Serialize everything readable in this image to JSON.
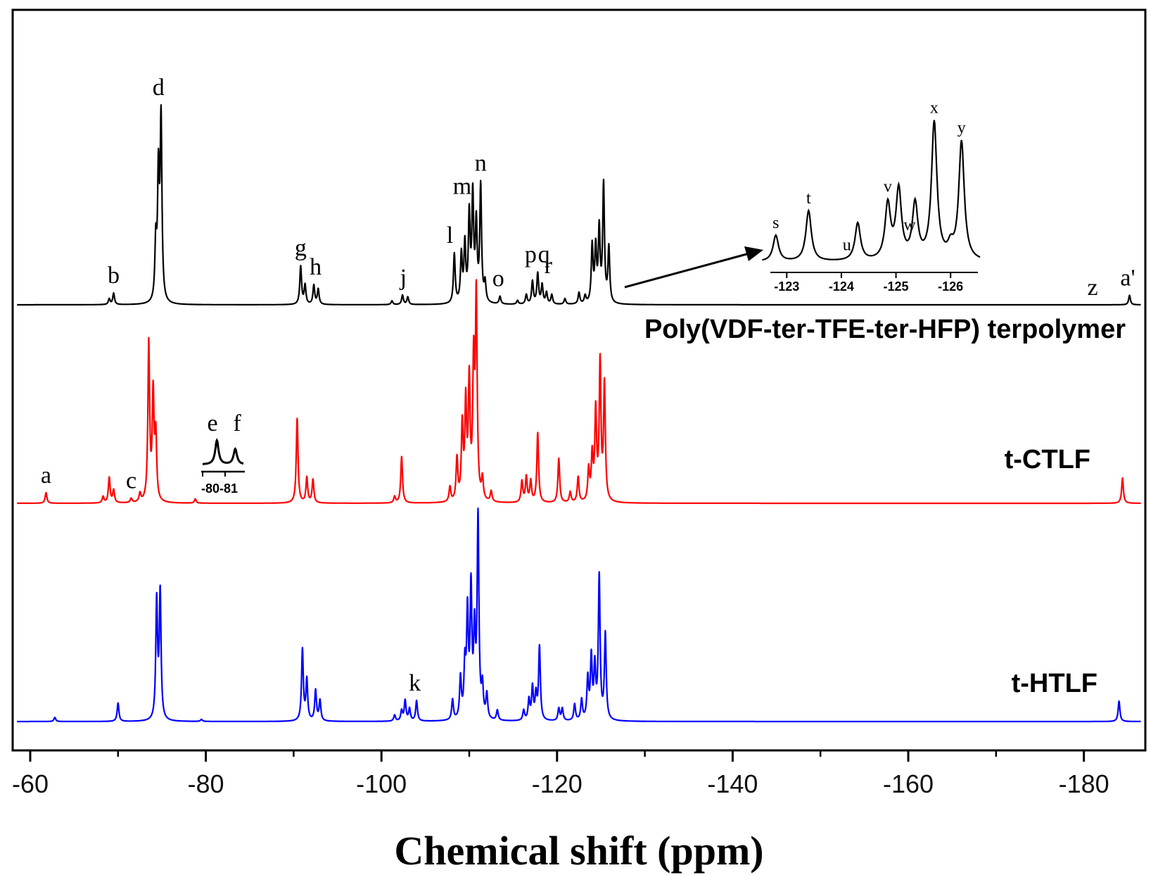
{
  "chart_data": {
    "type": "line",
    "title": "",
    "xlabel": "Chemical shift (ppm)",
    "ylabel": "",
    "xlim": [
      -58,
      -187
    ],
    "x_ticks": [
      -60,
      -80,
      -100,
      -120,
      -140,
      -160,
      -180
    ],
    "tick_labels": [
      "-60",
      "-80",
      "-100",
      "-120",
      "-140",
      "-160",
      "-180"
    ],
    "grid": false,
    "series": [
      {
        "name": "Poly(VDF-ter-TFE-ter-HFP) terpolymer",
        "color": "#000000",
        "peaks": [
          [
            -69.5,
            0.06
          ],
          [
            -69.0,
            0.03
          ],
          [
            -74.3,
            0.3
          ],
          [
            -74.6,
            0.65
          ],
          [
            -74.9,
            0.95
          ],
          [
            -90.8,
            0.2
          ],
          [
            -91.3,
            0.1
          ],
          [
            -92.3,
            0.1
          ],
          [
            -92.8,
            0.08
          ],
          [
            -101.2,
            0.02
          ],
          [
            -102.4,
            0.05
          ],
          [
            -103.0,
            0.04
          ],
          [
            -108.3,
            0.26
          ],
          [
            -109.1,
            0.25
          ],
          [
            -109.5,
            0.3
          ],
          [
            -110.0,
            0.45
          ],
          [
            -110.4,
            0.55
          ],
          [
            -110.8,
            0.4
          ],
          [
            -111.3,
            0.61
          ],
          [
            -111.8,
            0.1
          ],
          [
            -113.5,
            0.04
          ],
          [
            -115.5,
            0.02
          ],
          [
            -116.5,
            0.05
          ],
          [
            -117.2,
            0.12
          ],
          [
            -117.8,
            0.16
          ],
          [
            -118.3,
            0.1
          ],
          [
            -118.8,
            0.06
          ],
          [
            -119.4,
            0.05
          ],
          [
            -120.9,
            0.03
          ],
          [
            -122.5,
            0.06
          ],
          [
            -123.2,
            0.04
          ],
          [
            -124.0,
            0.3
          ],
          [
            -124.4,
            0.28
          ],
          [
            -124.8,
            0.38
          ],
          [
            -125.3,
            0.62
          ],
          [
            -125.9,
            0.29
          ],
          [
            -185.2,
            0.05
          ]
        ],
        "peak_labels": [
          {
            "text": "b",
            "ppm": -69.5
          },
          {
            "text": "d",
            "ppm": -74.6
          },
          {
            "text": "g",
            "ppm": -90.8
          },
          {
            "text": "h",
            "ppm": -92.5
          },
          {
            "text": "j",
            "ppm": -102.5
          },
          {
            "text": "l",
            "ppm": -107.8
          },
          {
            "text": "m",
            "ppm": -109.2
          },
          {
            "text": "n",
            "ppm": -111.3
          },
          {
            "text": "o",
            "ppm": -113.3
          },
          {
            "text": "p",
            "ppm": -117.0
          },
          {
            "text": "q",
            "ppm": -118.5
          },
          {
            "text": "r",
            "ppm": -119.0
          },
          {
            "text": "z",
            "ppm": -181.0
          },
          {
            "text": "a'",
            "ppm": -185.0
          }
        ]
      },
      {
        "name": "t-CTLF",
        "color": "#ff0000",
        "peaks": [
          [
            -61.8,
            0.05
          ],
          [
            -68.3,
            0.03
          ],
          [
            -69.0,
            0.12
          ],
          [
            -69.5,
            0.06
          ],
          [
            -71.5,
            0.02
          ],
          [
            -72.5,
            0.04
          ],
          [
            -73.5,
            0.75
          ],
          [
            -74.0,
            0.5
          ],
          [
            -74.3,
            0.3
          ],
          [
            -78.8,
            0.02
          ],
          [
            -90.4,
            0.4
          ],
          [
            -91.5,
            0.12
          ],
          [
            -92.2,
            0.11
          ],
          [
            -101.5,
            0.03
          ],
          [
            -102.3,
            0.22
          ],
          [
            -107.8,
            0.07
          ],
          [
            -108.6,
            0.2
          ],
          [
            -109.2,
            0.35
          ],
          [
            -109.6,
            0.45
          ],
          [
            -110.0,
            0.55
          ],
          [
            -110.5,
            0.62
          ],
          [
            -110.8,
            0.95
          ],
          [
            -111.5,
            0.1
          ],
          [
            -112.5,
            0.05
          ],
          [
            -116.0,
            0.1
          ],
          [
            -116.5,
            0.12
          ],
          [
            -117.0,
            0.1
          ],
          [
            -117.8,
            0.33
          ],
          [
            -120.2,
            0.21
          ],
          [
            -121.5,
            0.05
          ],
          [
            -122.4,
            0.12
          ],
          [
            -123.6,
            0.15
          ],
          [
            -124.0,
            0.21
          ],
          [
            -124.4,
            0.42
          ],
          [
            -124.9,
            0.65
          ],
          [
            -125.4,
            0.55
          ],
          [
            -184.4,
            0.12
          ]
        ],
        "peak_labels": [
          {
            "text": "a",
            "ppm": -61.8
          },
          {
            "text": "c",
            "ppm": -71.5
          }
        ]
      },
      {
        "name": "t-HTLF",
        "color": "#0000ff",
        "peaks": [
          [
            -62.8,
            0.02
          ],
          [
            -70.0,
            0.09
          ],
          [
            -74.4,
            0.58
          ],
          [
            -74.8,
            0.62
          ],
          [
            -79.5,
            0.01
          ],
          [
            -91.0,
            0.35
          ],
          [
            -91.5,
            0.2
          ],
          [
            -92.5,
            0.15
          ],
          [
            -93.0,
            0.1
          ],
          [
            -101.5,
            0.03
          ],
          [
            -102.3,
            0.05
          ],
          [
            -102.7,
            0.1
          ],
          [
            -103.2,
            0.06
          ],
          [
            -104.0,
            0.1
          ],
          [
            -108.1,
            0.1
          ],
          [
            -109.0,
            0.2
          ],
          [
            -109.5,
            0.25
          ],
          [
            -109.8,
            0.5
          ],
          [
            -110.2,
            0.62
          ],
          [
            -110.6,
            0.4
          ],
          [
            -111.0,
            0.98
          ],
          [
            -111.5,
            0.15
          ],
          [
            -112.0,
            0.12
          ],
          [
            -113.2,
            0.05
          ],
          [
            -116.2,
            0.05
          ],
          [
            -116.8,
            0.1
          ],
          [
            -117.2,
            0.16
          ],
          [
            -117.6,
            0.12
          ],
          [
            -118.0,
            0.36
          ],
          [
            -120.2,
            0.06
          ],
          [
            -120.6,
            0.06
          ],
          [
            -122.0,
            0.08
          ],
          [
            -122.8,
            0.1
          ],
          [
            -123.5,
            0.2
          ],
          [
            -123.9,
            0.3
          ],
          [
            -124.3,
            0.25
          ],
          [
            -124.8,
            0.7
          ],
          [
            -125.5,
            0.42
          ],
          [
            -184.0,
            0.1
          ]
        ],
        "peak_labels": [
          {
            "text": "k",
            "ppm": -103.8
          }
        ]
      }
    ],
    "inset_zoom": {
      "x_ticks": [
        -123,
        -124,
        -125,
        -126
      ],
      "tick_labels": [
        "-123",
        "-124",
        "-125",
        "-126"
      ],
      "peaks": [
        [
          -122.8,
          0.18
        ],
        [
          -123.4,
          0.35
        ],
        [
          -124.3,
          0.26
        ],
        [
          -124.85,
          0.38
        ],
        [
          -125.05,
          0.48
        ],
        [
          -125.35,
          0.38
        ],
        [
          -125.7,
          0.95
        ],
        [
          -126.0,
          0.08
        ],
        [
          -126.2,
          0.82
        ]
      ],
      "peak_labels": [
        {
          "text": "s",
          "ppm": -122.8
        },
        {
          "text": "t",
          "ppm": -123.4
        },
        {
          "text": "u",
          "ppm": -124.1
        },
        {
          "text": "v",
          "ppm": -124.85
        },
        {
          "text": "w",
          "ppm": -125.25
        },
        {
          "text": "x",
          "ppm": -125.7
        },
        {
          "text": "y",
          "ppm": -126.2
        }
      ]
    },
    "inset_ef": {
      "tick_label": "-80-81",
      "peak_labels": [
        {
          "text": "e"
        },
        {
          "text": "f"
        }
      ]
    }
  }
}
